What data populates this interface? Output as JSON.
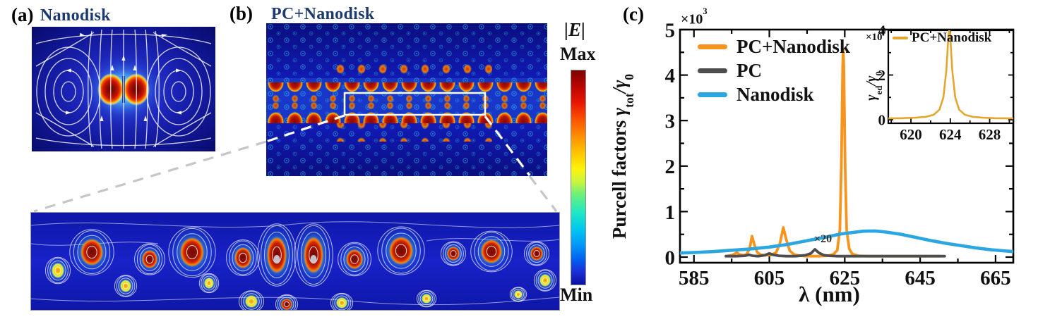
{
  "figure": {
    "panel_a": {
      "label": "(a)",
      "title": "Nanodisk"
    },
    "panel_b": {
      "label": "(b)",
      "title": "PC+Nanodisk"
    },
    "colorbar": {
      "title": "|E|",
      "max_label": "Max",
      "min_label": "Min"
    },
    "panel_c": {
      "label": "(c)",
      "xlabel": "λ (nm)",
      "ylabel_prefix": "Purcell factors ",
      "ylabel_gamma1": "γ",
      "ylabel_sub1": "tot",
      "ylabel_gamma2": "/γ",
      "ylabel_sub2": "0",
      "y_multiplier_base": "×10",
      "y_multiplier_exp": "3",
      "inset": {
        "ylabel_gamma1": "γ",
        "ylabel_sub1": "ed",
        "ylabel_gamma2": "/γ",
        "ylabel_sub2": "0",
        "y_multiplier_base": "×10",
        "y_multiplier_exp": "3"
      }
    }
  },
  "chart_data": [
    {
      "type": "line",
      "title": "",
      "xlabel": "λ (nm)",
      "ylabel": "Purcell factors γtot/γ0 (×10³)",
      "xlim": [
        581.3,
        669.7
      ],
      "ylim": [
        0,
        5
      ],
      "x_ticks": [
        585,
        605,
        625,
        645,
        665
      ],
      "x_minor_ticks": [
        595,
        615,
        635,
        655
      ],
      "y_ticks": [
        0,
        1,
        2,
        3,
        4,
        5
      ],
      "y_minor_ticks": [
        0.5,
        1.5,
        2.5,
        3.5,
        4.5
      ],
      "grid": false,
      "legend_position": "top-left",
      "annotations": [
        {
          "text": "×20",
          "x": 617.5,
          "y": 0.28
        }
      ],
      "series": [
        {
          "name": "PC+Nanodisk",
          "color": "#F7941D",
          "width": 3.8,
          "points": [
            [
              593.5,
              0.02
            ],
            [
              595,
              0.04
            ],
            [
              595.8,
              0.07
            ],
            [
              596.4,
              0.1
            ],
            [
              597,
              0.06
            ],
            [
              598,
              0.04
            ],
            [
              599,
              0.06
            ],
            [
              599.8,
              0.2
            ],
            [
              600.4,
              0.46
            ],
            [
              601,
              0.28
            ],
            [
              601.8,
              0.1
            ],
            [
              602.8,
              0.05
            ],
            [
              604,
              0.04
            ],
            [
              605.5,
              0.05
            ],
            [
              606.8,
              0.1
            ],
            [
              607.8,
              0.3
            ],
            [
              608.7,
              0.65
            ],
            [
              609.5,
              0.38
            ],
            [
              610.4,
              0.14
            ],
            [
              611.5,
              0.06
            ],
            [
              613,
              0.03
            ],
            [
              615,
              0.02
            ],
            [
              618,
              0.02
            ],
            [
              620.5,
              0.03
            ],
            [
              622,
              0.06
            ],
            [
              623,
              0.15
            ],
            [
              623.7,
              0.6
            ],
            [
              624.1,
              2.0
            ],
            [
              624.45,
              4.2
            ],
            [
              624.6,
              4.55
            ],
            [
              624.75,
              4.2
            ],
            [
              625.1,
              2.0
            ],
            [
              625.5,
              0.6
            ],
            [
              626.2,
              0.18
            ],
            [
              627,
              0.07
            ],
            [
              628.5,
              0.03
            ],
            [
              631,
              0.02
            ],
            [
              636,
              0.02
            ],
            [
              642,
              0.02
            ],
            [
              648,
              0.02
            ],
            [
              650,
              0.02
            ]
          ]
        },
        {
          "name": "PC",
          "color": "#4D4D4D",
          "width": 3.8,
          "points": [
            [
              593.5,
              0.02
            ],
            [
              596,
              0.02
            ],
            [
              598.5,
              0.03
            ],
            [
              599.6,
              0.05
            ],
            [
              600.6,
              0.03
            ],
            [
              602,
              0.02
            ],
            [
              603.8,
              0.04
            ],
            [
              605,
              0.08
            ],
            [
              606,
              0.05
            ],
            [
              607.5,
              0.03
            ],
            [
              609.5,
              0.02
            ],
            [
              612,
              0.02
            ],
            [
              614.5,
              0.04
            ],
            [
              616,
              0.08
            ],
            [
              617.1,
              0.17
            ],
            [
              618.2,
              0.09
            ],
            [
              619.5,
              0.04
            ],
            [
              621,
              0.03
            ],
            [
              623,
              0.02
            ],
            [
              626,
              0.02
            ],
            [
              630,
              0.02
            ],
            [
              636,
              0.02
            ],
            [
              643,
              0.02
            ],
            [
              649,
              0.02
            ],
            [
              651.5,
              0.02
            ]
          ]
        },
        {
          "name": "Nanodisk",
          "color": "#2BA6E0",
          "width": 4.6,
          "points": [
            [
              581.3,
              0.09
            ],
            [
              585,
              0.1
            ],
            [
              590,
              0.12
            ],
            [
              595,
              0.15
            ],
            [
              600,
              0.18
            ],
            [
              605,
              0.22
            ],
            [
              610,
              0.28
            ],
            [
              615,
              0.36
            ],
            [
              620,
              0.44
            ],
            [
              624,
              0.51
            ],
            [
              627,
              0.54
            ],
            [
              630,
              0.57
            ],
            [
              633,
              0.575
            ],
            [
              636,
              0.55
            ],
            [
              640,
              0.5
            ],
            [
              644,
              0.43
            ],
            [
              648,
              0.36
            ],
            [
              652,
              0.3
            ],
            [
              656,
              0.25
            ],
            [
              660,
              0.2
            ],
            [
              664,
              0.16
            ],
            [
              667,
              0.14
            ],
            [
              669.7,
              0.12
            ]
          ]
        }
      ]
    },
    {
      "type": "line",
      "title": "",
      "xlabel": "",
      "ylabel": "γed/γ0 (×10³)",
      "xlim": [
        617.7,
        630.4
      ],
      "ylim": [
        0,
        4
      ],
      "x_ticks": [
        620,
        624,
        628
      ],
      "x_minor_ticks": [
        618,
        622,
        626,
        630
      ],
      "y_ticks": [
        0,
        2,
        4
      ],
      "y_minor_ticks": [
        1,
        3
      ],
      "grid": false,
      "legend_position": "top-left",
      "series": [
        {
          "name": "PC+Nanodisk",
          "color": "#E3A72F",
          "width": 2.6,
          "points": [
            [
              617.7,
              0.06
            ],
            [
              619,
              0.07
            ],
            [
              620.5,
              0.09
            ],
            [
              621.5,
              0.13
            ],
            [
              622.3,
              0.22
            ],
            [
              622.9,
              0.45
            ],
            [
              623.3,
              1.0
            ],
            [
              623.6,
              2.2
            ],
            [
              623.8,
              3.7
            ],
            [
              623.9,
              4.05
            ],
            [
              624.0,
              3.7
            ],
            [
              624.2,
              2.2
            ],
            [
              624.5,
              1.0
            ],
            [
              624.9,
              0.45
            ],
            [
              625.5,
              0.22
            ],
            [
              626.3,
              0.13
            ],
            [
              627.3,
              0.09
            ],
            [
              628.6,
              0.07
            ],
            [
              630.4,
              0.06
            ]
          ]
        }
      ]
    }
  ]
}
